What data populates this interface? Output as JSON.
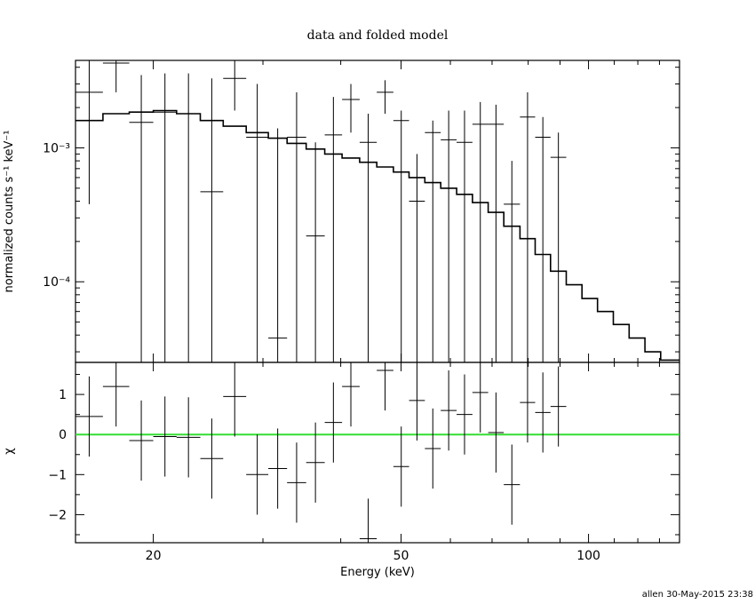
{
  "chart_data": [
    {
      "type": "scatter",
      "title": "data and folded model",
      "xlabel": "Energy (keV)",
      "ylabel": "normalized counts s⁻¹ keV⁻¹",
      "x_scale": "log",
      "y_scale": "log",
      "xlim": [
        15,
        140
      ],
      "ylim": [
        2.5e-05,
        0.0045
      ],
      "x_ticks": [
        20,
        50,
        100
      ],
      "y_ticks": [
        0.0001,
        0.001
      ],
      "y_tick_labels": [
        "10⁻⁴",
        "10⁻³"
      ],
      "series": [
        {
          "style": "crosses",
          "points": [
            {
              "x0": 15.0,
              "x1": 16.6,
              "y": 0.0026,
              "lo": 0.00038,
              "hi": 0.0045
            },
            {
              "x0": 16.6,
              "x1": 18.3,
              "y": 0.0043,
              "lo": 0.0026,
              "hi": 0.0045
            },
            {
              "x0": 18.3,
              "x1": 20.0,
              "y": 0.00155,
              "lo": 2.5e-05,
              "hi": 0.0035
            },
            {
              "x0": 20.0,
              "x1": 21.8,
              "y": 0.00185,
              "lo": 2.5e-05,
              "hi": 0.0036
            },
            {
              "x0": 21.8,
              "x1": 23.8,
              "y": 0.0018,
              "lo": 2.5e-05,
              "hi": 0.0036
            },
            {
              "x0": 23.8,
              "x1": 25.9,
              "y": 0.00047,
              "lo": 2.5e-05,
              "hi": 0.0033
            },
            {
              "x0": 25.9,
              "x1": 28.2,
              "y": 0.0033,
              "lo": 0.0019,
              "hi": 0.0045
            },
            {
              "x0": 28.2,
              "x1": 30.6,
              "y": 0.0012,
              "lo": 2.5e-05,
              "hi": 0.003
            },
            {
              "x0": 30.6,
              "x1": 32.8,
              "y": 3.8e-05,
              "lo": 2.5e-05,
              "hi": 0.0014
            },
            {
              "x0": 32.8,
              "x1": 35.2,
              "y": 0.0012,
              "lo": 2.5e-05,
              "hi": 0.0026
            },
            {
              "x0": 35.2,
              "x1": 37.7,
              "y": 0.00022,
              "lo": 2.5e-05,
              "hi": 0.0011
            },
            {
              "x0": 37.7,
              "x1": 40.2,
              "y": 0.00125,
              "lo": 2.5e-05,
              "hi": 0.0024
            },
            {
              "x0": 40.2,
              "x1": 42.9,
              "y": 0.0023,
              "lo": 0.0013,
              "hi": 0.003
            },
            {
              "x0": 42.9,
              "x1": 45.7,
              "y": 0.0011,
              "lo": 2.5e-05,
              "hi": 0.0018
            },
            {
              "x0": 45.7,
              "x1": 48.6,
              "y": 0.0026,
              "lo": 0.0018,
              "hi": 0.0032
            },
            {
              "x0": 48.6,
              "x1": 51.5,
              "y": 0.0016,
              "lo": 2.5e-05,
              "hi": 0.0019
            },
            {
              "x0": 51.5,
              "x1": 54.6,
              "y": 0.0004,
              "lo": 2.5e-05,
              "hi": 0.0009
            },
            {
              "x0": 54.6,
              "x1": 57.9,
              "y": 0.0013,
              "lo": 2.5e-05,
              "hi": 0.0016
            },
            {
              "x0": 57.9,
              "x1": 61.4,
              "y": 0.00115,
              "lo": 2.5e-05,
              "hi": 0.0019
            },
            {
              "x0": 61.4,
              "x1": 65.1,
              "y": 0.0011,
              "lo": 2.5e-05,
              "hi": 0.0019
            },
            {
              "x0": 65.1,
              "x1": 69.0,
              "y": 0.0015,
              "lo": 2.5e-05,
              "hi": 0.0022
            },
            {
              "x0": 69.0,
              "x1": 73.1,
              "y": 0.0015,
              "lo": 2.5e-05,
              "hi": 0.0021
            },
            {
              "x0": 73.1,
              "x1": 77.6,
              "y": 0.00038,
              "lo": 2.5e-05,
              "hi": 0.0008
            },
            {
              "x0": 77.6,
              "x1": 82.1,
              "y": 0.0017,
              "lo": 2.5e-05,
              "hi": 0.0026
            },
            {
              "x0": 82.1,
              "x1": 86.9,
              "y": 0.0012,
              "lo": 2.5e-05,
              "hi": 0.0017
            },
            {
              "x0": 86.9,
              "x1": 92.1,
              "y": 0.00085,
              "lo": 2.5e-05,
              "hi": 0.0013
            }
          ]
        },
        {
          "name": "folded model",
          "style": "steps",
          "edges": [
            15.0,
            16.6,
            18.3,
            20.0,
            21.8,
            23.8,
            25.9,
            28.2,
            30.6,
            32.8,
            35.2,
            37.7,
            40.2,
            42.9,
            45.7,
            48.6,
            51.5,
            54.6,
            57.9,
            61.4,
            65.1,
            69.0,
            73.1,
            77.6,
            82.1,
            86.9,
            92.1,
            97.6,
            103.4,
            109.6,
            116.2,
            123.2,
            130.6,
            140.0
          ],
          "values": [
            0.0016,
            0.0018,
            0.00185,
            0.0019,
            0.0018,
            0.0016,
            0.00145,
            0.0013,
            0.00118,
            0.00108,
            0.00098,
            0.0009,
            0.00084,
            0.00078,
            0.00072,
            0.00066,
            0.0006,
            0.00055,
            0.0005,
            0.00045,
            0.00039,
            0.00033,
            0.00026,
            0.00021,
            0.00016,
            0.00012,
            9.5e-05,
            7.5e-05,
            6e-05,
            4.8e-05,
            3.8e-05,
            3e-05,
            2.6e-05
          ]
        }
      ]
    },
    {
      "type": "scatter",
      "xlabel": "Energy (keV)",
      "ylabel": "χ",
      "x_scale": "log",
      "xlim": [
        15,
        140
      ],
      "ylim": [
        -2.7,
        1.8
      ],
      "x_ticks": [
        20,
        50,
        100
      ],
      "x_tick_labels": [
        "20",
        "50",
        "100"
      ],
      "y_ticks": [
        -2,
        -1,
        0,
        1
      ],
      "y_tick_labels": [
        "−2",
        "−1",
        "0",
        "1"
      ],
      "reference_line": {
        "y": 0,
        "color": "#33dd33"
      },
      "series": [
        {
          "style": "crosses",
          "points": [
            {
              "x0": 15.0,
              "x1": 16.6,
              "y": 0.45,
              "lo": -0.55,
              "hi": 1.45
            },
            {
              "x0": 16.6,
              "x1": 18.3,
              "y": 1.2,
              "lo": 0.2,
              "hi": 2.2
            },
            {
              "x0": 18.3,
              "x1": 20.0,
              "y": -0.15,
              "lo": -1.15,
              "hi": 0.85
            },
            {
              "x0": 20.0,
              "x1": 21.8,
              "y": -0.05,
              "lo": -1.05,
              "hi": 0.95
            },
            {
              "x0": 21.8,
              "x1": 23.8,
              "y": -0.07,
              "lo": -1.07,
              "hi": 0.93
            },
            {
              "x0": 23.8,
              "x1": 25.9,
              "y": -0.6,
              "lo": -1.6,
              "hi": 0.4
            },
            {
              "x0": 25.9,
              "x1": 28.2,
              "y": 0.95,
              "lo": -0.05,
              "hi": 1.95
            },
            {
              "x0": 28.2,
              "x1": 30.6,
              "y": -1.0,
              "lo": -2.0,
              "hi": 0.0
            },
            {
              "x0": 30.6,
              "x1": 32.8,
              "y": -0.85,
              "lo": -1.85,
              "hi": 0.15
            },
            {
              "x0": 32.8,
              "x1": 35.2,
              "y": -1.2,
              "lo": -2.2,
              "hi": -0.2
            },
            {
              "x0": 35.2,
              "x1": 37.7,
              "y": -0.7,
              "lo": -1.7,
              "hi": 0.3
            },
            {
              "x0": 37.7,
              "x1": 40.2,
              "y": 0.3,
              "lo": -0.7,
              "hi": 1.3
            },
            {
              "x0": 40.2,
              "x1": 42.9,
              "y": 1.2,
              "lo": 0.2,
              "hi": 2.2
            },
            {
              "x0": 42.9,
              "x1": 45.7,
              "y": -2.6,
              "lo": -2.7,
              "hi": -1.6
            },
            {
              "x0": 45.7,
              "x1": 48.6,
              "y": 1.6,
              "lo": 0.6,
              "hi": 2.2
            },
            {
              "x0": 48.6,
              "x1": 51.5,
              "y": -0.8,
              "lo": -1.8,
              "hi": 0.2
            },
            {
              "x0": 51.5,
              "x1": 54.6,
              "y": 0.85,
              "lo": -0.15,
              "hi": 1.85
            },
            {
              "x0": 54.6,
              "x1": 57.9,
              "y": -0.35,
              "lo": -1.35,
              "hi": 0.65
            },
            {
              "x0": 57.9,
              "x1": 61.4,
              "y": 0.6,
              "lo": -0.4,
              "hi": 1.6
            },
            {
              "x0": 61.4,
              "x1": 65.1,
              "y": 0.5,
              "lo": -0.5,
              "hi": 1.5
            },
            {
              "x0": 65.1,
              "x1": 69.0,
              "y": 1.05,
              "lo": 0.05,
              "hi": 2.05
            },
            {
              "x0": 69.0,
              "x1": 73.1,
              "y": 0.05,
              "lo": -0.95,
              "hi": 1.05
            },
            {
              "x0": 73.1,
              "x1": 77.6,
              "y": -1.25,
              "lo": -2.25,
              "hi": -0.25
            },
            {
              "x0": 77.6,
              "x1": 82.1,
              "y": 0.8,
              "lo": -0.2,
              "hi": 1.8
            },
            {
              "x0": 82.1,
              "x1": 86.9,
              "y": 0.55,
              "lo": -0.45,
              "hi": 1.55
            },
            {
              "x0": 86.9,
              "x1": 92.1,
              "y": 0.7,
              "lo": -0.3,
              "hi": 1.7
            }
          ]
        }
      ]
    }
  ],
  "footer": {
    "stamp": "allen 30-May-2015 23:38"
  }
}
